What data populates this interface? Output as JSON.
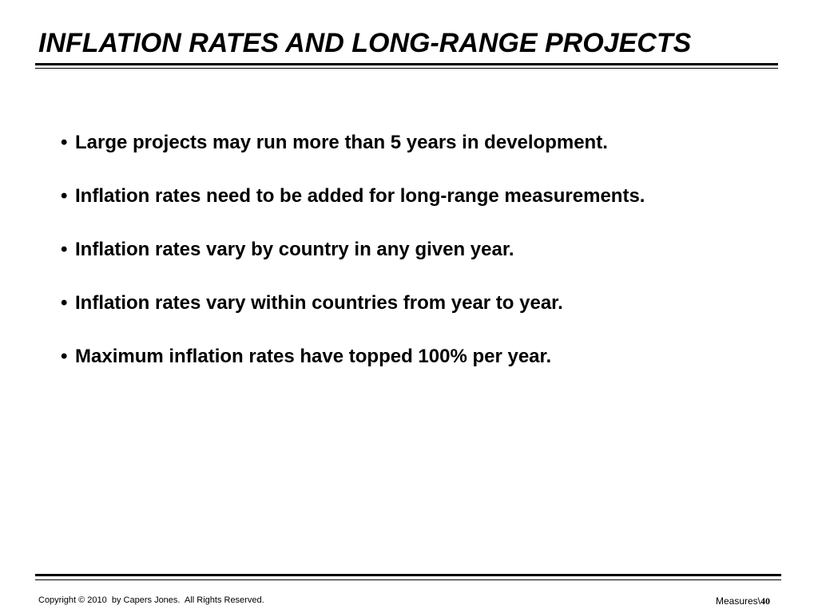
{
  "slide": {
    "title": "INFLATION RATES AND LONG-RANGE PROJECTS",
    "bullet_symbol": "•",
    "bullets": [
      "Large projects may run more than 5 years in development.",
      "Inflation rates need to be added for long-range measurements.",
      "Inflation rates vary by country in any given year.",
      "Inflation rates vary within countries from year to year.",
      "Maximum inflation rates have topped 100% per year."
    ]
  },
  "footer": {
    "copyright": "Copyright © 2010  by Capers Jones.  All Rights Reserved.",
    "section": "Measures\\",
    "page_number": "40"
  }
}
